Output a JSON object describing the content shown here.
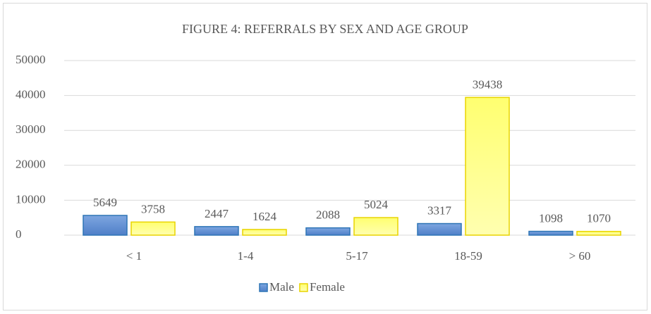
{
  "chart_data": {
    "type": "bar",
    "title": "FIGURE 4: REFERRALS BY SEX AND AGE GROUP",
    "categories": [
      "< 1",
      "1-4",
      "5-17",
      "18-59",
      "> 60"
    ],
    "series": [
      {
        "name": "Male",
        "color": "#5b8fd6",
        "values": [
          5649,
          2447,
          2088,
          3317,
          1098
        ]
      },
      {
        "name": "Female",
        "color": "#ffff8c",
        "values": [
          3758,
          1624,
          5024,
          39438,
          1070
        ]
      }
    ],
    "ylim": [
      0,
      50000
    ],
    "yticks": [
      0,
      10000,
      20000,
      30000,
      40000,
      50000
    ],
    "grid": true,
    "legend": "bottom"
  }
}
